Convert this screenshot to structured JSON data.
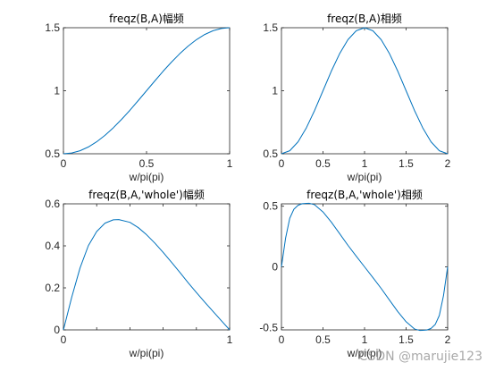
{
  "watermark": "CSDN @marujie123",
  "colors": {
    "line": "#0072BD",
    "axis": "#262626",
    "text": "#262626"
  },
  "chart_data": [
    {
      "type": "line",
      "title": "freqz(B,A)幅频",
      "xlabel": "w/pi(pi)",
      "ylabel": "",
      "xlim": [
        0,
        1
      ],
      "ylim": [
        0.5,
        1.5
      ],
      "xticks": [
        0,
        0.5,
        1
      ],
      "yticks": [
        0.5,
        1,
        1.5
      ],
      "grid": false,
      "series": [
        {
          "x": [
            0,
            0.05,
            0.1,
            0.15,
            0.2,
            0.25,
            0.3,
            0.35,
            0.4,
            0.45,
            0.5,
            0.55,
            0.6,
            0.65,
            0.7,
            0.75,
            0.8,
            0.85,
            0.9,
            0.95,
            1
          ],
          "y": [
            0.5,
            0.506,
            0.524,
            0.554,
            0.595,
            0.646,
            0.706,
            0.773,
            0.845,
            0.922,
            1.0,
            1.078,
            1.155,
            1.227,
            1.294,
            1.354,
            1.405,
            1.446,
            1.476,
            1.494,
            1.5
          ]
        }
      ]
    },
    {
      "type": "line",
      "title": "freqz(B,A)相频",
      "xlabel": "w/pi(pi)",
      "ylabel": "",
      "xlim": [
        0,
        2
      ],
      "ylim": [
        0.5,
        1.5
      ],
      "xticks": [
        0,
        0.5,
        1,
        1.5,
        2
      ],
      "yticks": [
        0.5,
        1,
        1.5
      ],
      "grid": false,
      "series": [
        {
          "x": [
            0,
            0.1,
            0.2,
            0.3,
            0.4,
            0.5,
            0.6,
            0.7,
            0.8,
            0.9,
            1.0,
            1.1,
            1.2,
            1.3,
            1.4,
            1.5,
            1.6,
            1.7,
            1.8,
            1.9,
            2.0
          ],
          "y": [
            0.5,
            0.524,
            0.595,
            0.706,
            0.845,
            1.0,
            1.155,
            1.294,
            1.405,
            1.476,
            1.5,
            1.476,
            1.405,
            1.294,
            1.155,
            1.0,
            0.845,
            0.706,
            0.595,
            0.524,
            0.5
          ]
        }
      ]
    },
    {
      "type": "line",
      "title": "freqz(B,A,'whole')幅频",
      "xlabel": "w/pi(pi)",
      "ylabel": "",
      "xlim": [
        0,
        1
      ],
      "ylim": [
        0,
        0.6
      ],
      "xticks": [
        0,
        0.2,
        0.4,
        0.6,
        0.8,
        1
      ],
      "xtick_labels_shown": [
        0,
        0.5,
        1
      ],
      "yticks": [
        0,
        0.2,
        0.4,
        0.6
      ],
      "grid": false,
      "series": [
        {
          "x": [
            0,
            0.05,
            0.1,
            0.15,
            0.2,
            0.25,
            0.3,
            0.333,
            0.4,
            0.45,
            0.5,
            0.55,
            0.6,
            0.65,
            0.7,
            0.75,
            0.8,
            0.85,
            0.9,
            0.95,
            1
          ],
          "y": [
            0,
            0.156,
            0.295,
            0.401,
            0.468,
            0.508,
            0.524,
            0.525,
            0.512,
            0.487,
            0.453,
            0.413,
            0.369,
            0.322,
            0.274,
            0.225,
            0.178,
            0.132,
            0.088,
            0.044,
            0
          ]
        }
      ]
    },
    {
      "type": "line",
      "title": "freqz(B,A,'whole')相频",
      "xlabel": "w/pi(pi)",
      "ylabel": "",
      "xlim": [
        0,
        2
      ],
      "ylim": [
        -0.52,
        0.52
      ],
      "xticks": [
        0,
        0.5,
        1,
        1.5,
        2
      ],
      "yticks": [
        -0.5,
        0,
        0.5
      ],
      "grid": false,
      "series": [
        {
          "x": [
            0,
            0.05,
            0.1,
            0.15,
            0.2,
            0.25,
            0.3,
            0.333,
            0.4,
            0.5,
            0.6,
            0.7,
            0.8,
            0.9,
            1.0,
            1.1,
            1.2,
            1.3,
            1.4,
            1.5,
            1.6,
            1.667,
            1.7,
            1.75,
            1.8,
            1.85,
            1.9,
            1.95,
            2.0
          ],
          "y": [
            0,
            0.238,
            0.401,
            0.476,
            0.508,
            0.521,
            0.524,
            0.525,
            0.512,
            0.453,
            0.369,
            0.274,
            0.178,
            0.088,
            0,
            -0.088,
            -0.178,
            -0.274,
            -0.369,
            -0.453,
            -0.512,
            -0.525,
            -0.524,
            -0.521,
            -0.508,
            -0.476,
            -0.401,
            -0.238,
            0
          ]
        }
      ]
    }
  ]
}
